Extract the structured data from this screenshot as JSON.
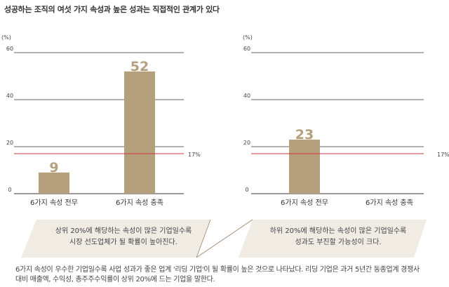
{
  "title": "성공하는 조직의 여섯 가지 속성과 높은 성과는 직접적인 관계가 있다",
  "colors": {
    "bar": "#b5a07d",
    "value": "#b5a07d",
    "reference": "#d0343c",
    "callout": "#f1ece3",
    "callout_border": "#9c8468",
    "grid": "#333333"
  },
  "chart_data": [
    {
      "type": "bar",
      "unit_label": "(%)",
      "ylim": [
        0,
        60
      ],
      "yticks": [
        0,
        20,
        40,
        60
      ],
      "categories": [
        "6가지 속성 전무",
        "6가지 속성 충족"
      ],
      "values": [
        9,
        52
      ],
      "reference_line": {
        "value": 17,
        "label": "17%"
      },
      "callout": [
        "상위 20%에 해당하는 속성이 많은 기업일수록",
        "시장 선도업체가 될 확률이 높아진다."
      ]
    },
    {
      "type": "bar",
      "unit_label": "(%)",
      "ylim": [
        0,
        60
      ],
      "yticks": [
        0,
        20,
        40,
        60
      ],
      "categories": [
        "6가지 속성 전무",
        "6가지 속성 충족"
      ],
      "values": [
        23,
        null
      ],
      "reference_line": {
        "value": 17,
        "label": "17%"
      },
      "callout": [
        "하위 20%에 해당하는 속성이 많은 기업일수록",
        "성과도 부진할 가능성이 크다."
      ]
    }
  ],
  "footnote": [
    "6가지 속성이 우수한 기업일수록 사업 성과가 좋은 업계 '리딩 기업'이 될 확률이 높은 것으로 나타났다. 리딩 기업은 과거 5년간 동종업계 경쟁사",
    "대비 매출액, 수익성, 총주주수익률이 상위 20%에 드는 기업을 말한다."
  ]
}
